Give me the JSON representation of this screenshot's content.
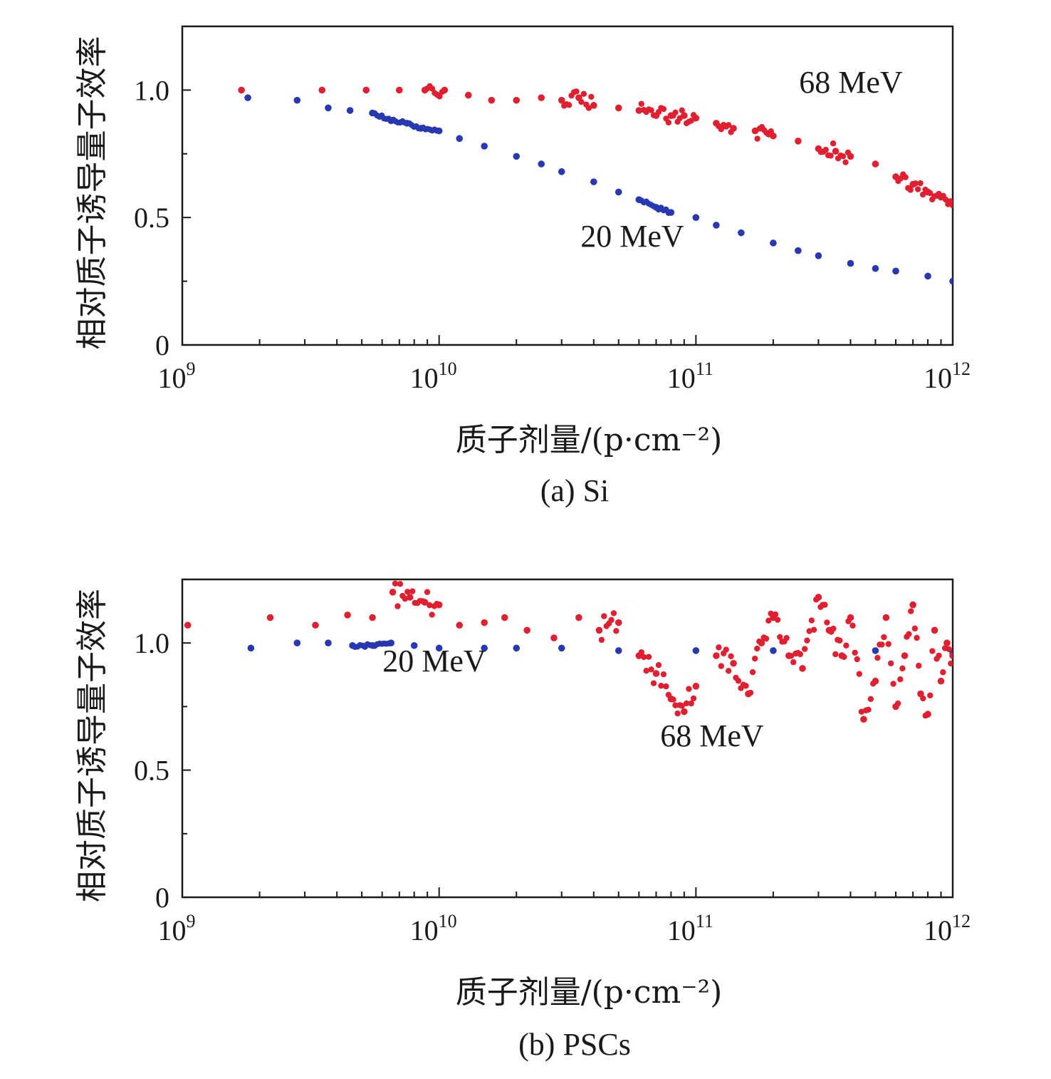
{
  "chart_data": [
    {
      "type": "scatter",
      "caption": "(a) Si",
      "xlabel": "质子剂量/(p·cm⁻²)",
      "ylabel": "相对质子诱导量子效率",
      "x_scale": "log",
      "xlim": [
        1000000000.0,
        1000000000000.0
      ],
      "ylim": [
        0,
        1.25
      ],
      "x_ticks": [
        {
          "base": "10",
          "exp": "9"
        },
        {
          "base": "10",
          "exp": "10"
        },
        {
          "base": "10",
          "exp": "11"
        },
        {
          "base": "10",
          "exp": "12"
        }
      ],
      "y_ticks": [
        "0",
        "0.5",
        "1.0"
      ],
      "grid": false,
      "series": [
        {
          "label": "68 MeV",
          "color": "#e02030",
          "points": [
            [
              1700000000.0,
              1.0
            ],
            [
              3500000000.0,
              1.0
            ],
            [
              5200000000.0,
              1.0
            ],
            [
              7000000000.0,
              1.0
            ],
            [
              8800000000.0,
              1.0
            ],
            [
              10500000000.0,
              1.0
            ],
            [
              13000000000.0,
              0.98
            ],
            [
              16000000000.0,
              0.96
            ],
            [
              20000000000.0,
              0.96
            ],
            [
              25000000000.0,
              0.97
            ],
            [
              30000000000.0,
              0.96
            ],
            [
              35000000000.0,
              0.97
            ],
            [
              40000000000.0,
              0.94
            ],
            [
              50000000000.0,
              0.93
            ],
            [
              60000000000.0,
              0.92
            ],
            [
              70000000000.0,
              0.9
            ],
            [
              80000000000.0,
              0.9
            ],
            [
              90000000000.0,
              0.9
            ],
            [
              100000000000.0,
              0.89
            ],
            [
              120000000000.0,
              0.87
            ],
            [
              140000000000.0,
              0.85
            ],
            [
              170000000000.0,
              0.84
            ],
            [
              200000000000.0,
              0.82
            ],
            [
              250000000000.0,
              0.8
            ],
            [
              300000000000.0,
              0.77
            ],
            [
              350000000000.0,
              0.76
            ],
            [
              400000000000.0,
              0.74
            ],
            [
              500000000000.0,
              0.71
            ],
            [
              600000000000.0,
              0.66
            ],
            [
              700000000000.0,
              0.63
            ],
            [
              800000000000.0,
              0.6
            ],
            [
              900000000000.0,
              0.58
            ],
            [
              1000000000000.0,
              0.55
            ]
          ]
        },
        {
          "label": "20 MeV",
          "color": "#2838b0",
          "points": [
            [
              1800000000.0,
              0.97
            ],
            [
              2800000000.0,
              0.96
            ],
            [
              3700000000.0,
              0.93
            ],
            [
              4500000000.0,
              0.92
            ],
            [
              5500000000.0,
              0.91
            ],
            [
              6500000000.0,
              0.88
            ],
            [
              7500000000.0,
              0.87
            ],
            [
              8500000000.0,
              0.85
            ],
            [
              10000000000.0,
              0.84
            ],
            [
              12000000000.0,
              0.81
            ],
            [
              15000000000.0,
              0.78
            ],
            [
              20000000000.0,
              0.74
            ],
            [
              25000000000.0,
              0.71
            ],
            [
              30000000000.0,
              0.68
            ],
            [
              40000000000.0,
              0.64
            ],
            [
              50000000000.0,
              0.6
            ],
            [
              60000000000.0,
              0.57
            ],
            [
              70000000000.0,
              0.54
            ],
            [
              80000000000.0,
              0.52
            ],
            [
              100000000000.0,
              0.5
            ],
            [
              120000000000.0,
              0.47
            ],
            [
              150000000000.0,
              0.44
            ],
            [
              200000000000.0,
              0.4
            ],
            [
              250000000000.0,
              0.37
            ],
            [
              300000000000.0,
              0.35
            ],
            [
              400000000000.0,
              0.32
            ],
            [
              500000000000.0,
              0.3
            ],
            [
              600000000000.0,
              0.29
            ],
            [
              800000000000.0,
              0.27
            ],
            [
              1000000000000.0,
              0.25
            ]
          ]
        }
      ]
    },
    {
      "type": "scatter",
      "caption": "(b) PSCs",
      "xlabel": "质子剂量/(p·cm⁻²)",
      "ylabel": "相对质子诱导量子效率",
      "x_scale": "log",
      "xlim": [
        1000000000.0,
        1000000000000.0
      ],
      "ylim": [
        0,
        1.25
      ],
      "x_ticks": [
        {
          "base": "10",
          "exp": "9"
        },
        {
          "base": "10",
          "exp": "10"
        },
        {
          "base": "10",
          "exp": "11"
        },
        {
          "base": "10",
          "exp": "12"
        }
      ],
      "y_ticks": [
        "0",
        "0.5",
        "1.0"
      ],
      "grid": false,
      "series": [
        {
          "label": "68 MeV",
          "color": "#e02030",
          "points": [
            [
              1050000000.0,
              1.07
            ],
            [
              2200000000.0,
              1.1
            ],
            [
              3300000000.0,
              1.07
            ],
            [
              4400000000.0,
              1.11
            ],
            [
              5500000000.0,
              1.1
            ],
            [
              6600000000.0,
              1.2
            ],
            [
              7700000000.0,
              1.18
            ],
            [
              8800000000.0,
              1.16
            ],
            [
              10000000000.0,
              1.15
            ],
            [
              12000000000.0,
              1.07
            ],
            [
              15000000000.0,
              1.08
            ],
            [
              18000000000.0,
              1.1
            ],
            [
              22000000000.0,
              1.05
            ],
            [
              28000000000.0,
              1.02
            ],
            [
              35000000000.0,
              1.1
            ],
            [
              42000000000.0,
              1.05
            ],
            [
              50000000000.0,
              1.08
            ],
            [
              60000000000.0,
              0.95
            ],
            [
              70000000000.0,
              0.88
            ],
            [
              80000000000.0,
              0.78
            ],
            [
              90000000000.0,
              0.73
            ],
            [
              100000000000.0,
              0.83
            ],
            [
              120000000000.0,
              0.95
            ],
            [
              140000000000.0,
              0.92
            ],
            [
              160000000000.0,
              0.8
            ],
            [
              180000000000.0,
              1.0
            ],
            [
              200000000000.0,
              1.1
            ],
            [
              230000000000.0,
              0.95
            ],
            [
              260000000000.0,
              0.9
            ],
            [
              300000000000.0,
              1.18
            ],
            [
              330000000000.0,
              1.05
            ],
            [
              370000000000.0,
              0.95
            ],
            [
              400000000000.0,
              1.1
            ],
            [
              450000000000.0,
              0.7
            ],
            [
              500000000000.0,
              0.85
            ],
            [
              550000000000.0,
              1.1
            ],
            [
              600000000000.0,
              0.75
            ],
            [
              650000000000.0,
              0.95
            ],
            [
              700000000000.0,
              1.15
            ],
            [
              750000000000.0,
              0.8
            ],
            [
              800000000000.0,
              0.72
            ],
            [
              850000000000.0,
              1.05
            ],
            [
              900000000000.0,
              0.85
            ],
            [
              950000000000.0,
              1.0
            ],
            [
              1000000000000.0,
              0.95
            ]
          ]
        },
        {
          "label": "20 MeV",
          "color": "#2838b0",
          "points": [
            [
              1850000000.0,
              0.98
            ],
            [
              2800000000.0,
              1.0
            ],
            [
              3700000000.0,
              1.0
            ],
            [
              4600000000.0,
              0.99
            ],
            [
              5500000000.0,
              0.99
            ],
            [
              6500000000.0,
              1.0
            ],
            [
              8000000000.0,
              0.99
            ],
            [
              10000000000.0,
              0.98
            ],
            [
              15000000000.0,
              0.98
            ],
            [
              20000000000.0,
              0.98
            ],
            [
              30000000000.0,
              0.98
            ],
            [
              50000000000.0,
              0.97
            ],
            [
              100000000000.0,
              0.97
            ],
            [
              200000000000.0,
              0.97
            ],
            [
              500000000000.0,
              0.97
            ],
            [
              1000000000000.0,
              0.96
            ]
          ]
        }
      ]
    }
  ]
}
